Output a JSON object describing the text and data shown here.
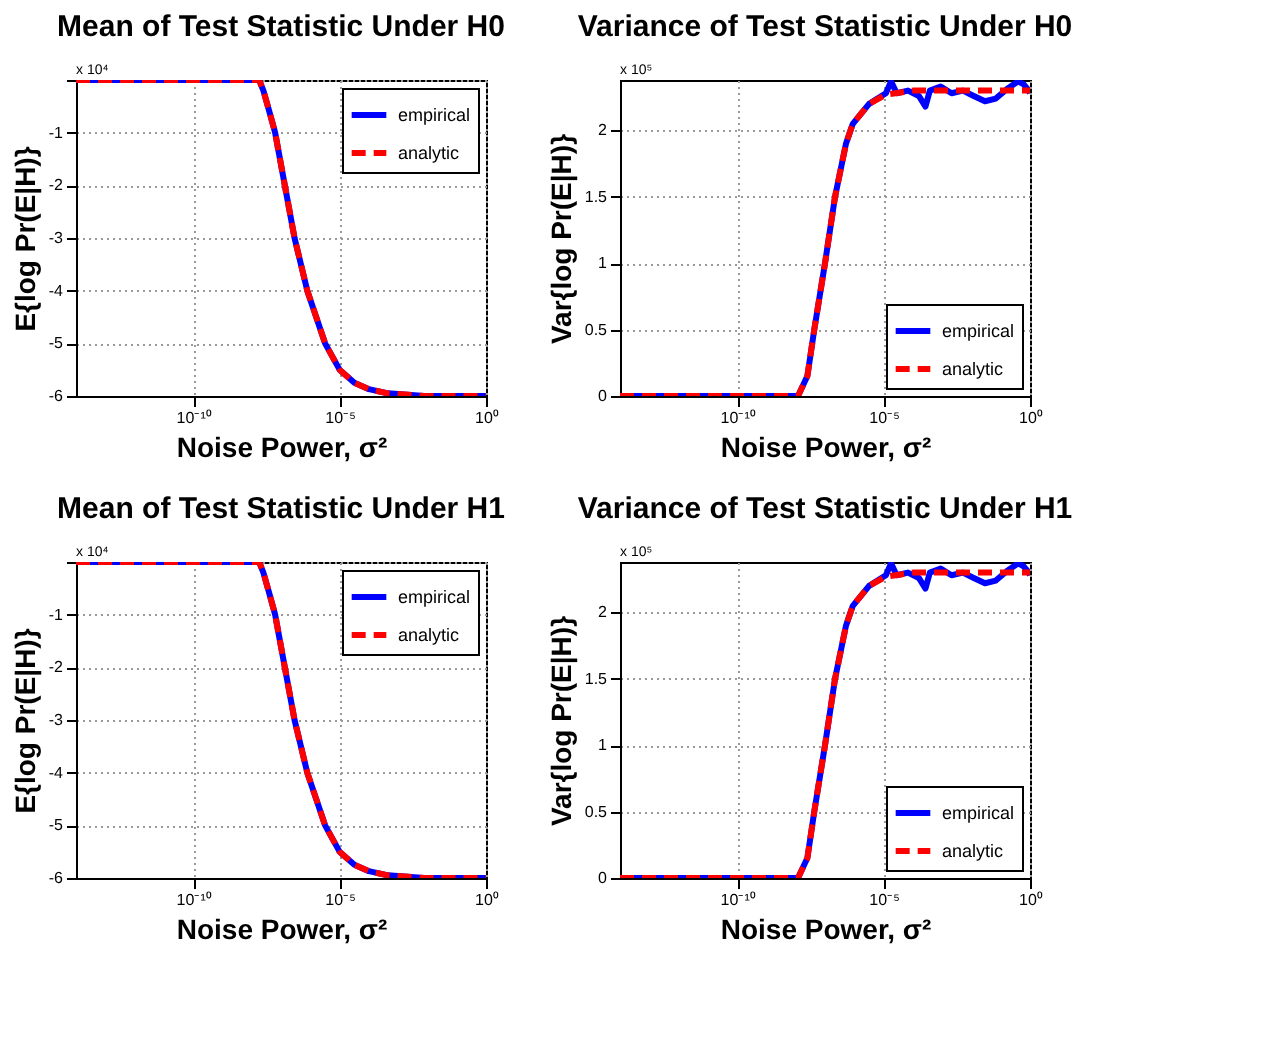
{
  "chart_data": [
    {
      "type": "line",
      "title": "Mean of Test Statistic Under H0",
      "xlabel": "Noise Power, σ²",
      "ylabel": "E{log Pr(E|H)}",
      "log": "x",
      "grid": true,
      "legend": "top right",
      "xlim": [
        1e-14,
        1
      ],
      "xticks": [
        {
          "value": 1e-10,
          "label": "10⁻¹⁰"
        },
        {
          "value": 1e-05,
          "label": "10⁻⁵"
        },
        {
          "value": 1,
          "label": "10⁰"
        }
      ],
      "ylim": [
        -6,
        0
      ],
      "yticks": [
        {
          "value": 0,
          "label": null
        },
        -1,
        -2,
        -3,
        -4,
        -5,
        -6
      ],
      "annotations": [
        "x 10⁴"
      ],
      "series": [
        {
          "name": "empirical",
          "color": "#0000ff",
          "line_style": "solid",
          "x": [
            1e-14,
            1e-08,
            1.8e-08,
            2.5e-08,
            4e-08,
            6.3e-08,
            1.35e-07,
            2.9e-07,
            7.9e-07,
            3.2e-06,
            1e-05,
            3.2e-05,
            0.0001,
            0.00045,
            0.0079,
            1
          ],
          "values": [
            0,
            0,
            0,
            -0.2,
            -0.6,
            -1,
            -2,
            -3,
            -4,
            -5,
            -5.5,
            -5.75,
            -5.87,
            -5.95,
            -6,
            -6
          ]
        },
        {
          "name": "analytic",
          "color": "#ff0000",
          "line_style": "dashed",
          "x": [
            1e-14,
            1e-08,
            1.8e-08,
            2.5e-08,
            4e-08,
            6.3e-08,
            1.35e-07,
            2.9e-07,
            7.9e-07,
            3.2e-06,
            1e-05,
            3.2e-05,
            0.0001,
            0.00045,
            0.0079,
            1
          ],
          "values": [
            0,
            0,
            0,
            -0.2,
            -0.6,
            -1,
            -2,
            -3,
            -4,
            -5,
            -5.5,
            -5.75,
            -5.87,
            -5.95,
            -6,
            -6
          ]
        }
      ]
    },
    {
      "type": "line",
      "title": "Variance of Test Statistic Under H0",
      "xlabel": "Noise Power, σ²",
      "ylabel": "Var{log Pr(E|H)}",
      "log": "x",
      "grid": true,
      "legend": "bottom right",
      "xlim": [
        1e-14,
        1
      ],
      "xticks": [
        {
          "value": 1e-10,
          "label": "10⁻¹⁰"
        },
        {
          "value": 1e-05,
          "label": "10⁻⁵"
        },
        {
          "value": 1,
          "label": "10⁰"
        }
      ],
      "ylim": [
        0,
        2.38
      ],
      "yticks": [
        0,
        0.5,
        1,
        1.5,
        2
      ],
      "annotations": [
        "x 10⁵"
      ],
      "series": [
        {
          "name": "empirical",
          "color": "#0000ff",
          "line_style": "solid",
          "x": [
            1e-14,
            1e-08,
            1.2e-08,
            2.5e-08,
            4.3e-08,
            1e-07,
            2.2e-07,
            5.2e-07,
            8.9e-07,
            3.2e-06,
            1.2e-05,
            1.8e-05,
            2.8e-05,
            6.8e-05,
            0.00016,
            0.00027,
            0.00038,
            0.00089,
            0.0021,
            0.0051,
            0.012,
            0.029,
            0.068,
            0.16,
            0.39,
            0.59,
            0.91,
            1
          ],
          "values": [
            0,
            0,
            0,
            0.15,
            0.5,
            1,
            1.5,
            1.9,
            2.05,
            2.2,
            2.28,
            2.37,
            2.28,
            2.3,
            2.26,
            2.18,
            2.3,
            2.33,
            2.28,
            2.3,
            2.26,
            2.22,
            2.24,
            2.31,
            2.37,
            2.35,
            2.3,
            2.28
          ]
        },
        {
          "name": "analytic",
          "color": "#ff0000",
          "line_style": "dashed",
          "x": [
            1e-14,
            1e-08,
            1.2e-08,
            2.5e-08,
            4.3e-08,
            1e-07,
            2.2e-07,
            5.2e-07,
            8.9e-07,
            3.2e-06,
            1.2e-05,
            0.0001,
            1
          ],
          "values": [
            0,
            0,
            0,
            0.15,
            0.5,
            1,
            1.5,
            1.9,
            2.05,
            2.2,
            2.27,
            2.3,
            2.3
          ]
        }
      ]
    },
    {
      "type": "line",
      "title": "Mean of Test Statistic Under H1",
      "xlabel": "Noise Power, σ²",
      "ylabel": "E{log Pr(E|H)}",
      "log": "x",
      "grid": true,
      "legend": "top right",
      "xlim": [
        1e-14,
        1
      ],
      "xticks": [
        {
          "value": 1e-10,
          "label": "10⁻¹⁰"
        },
        {
          "value": 1e-05,
          "label": "10⁻⁵"
        },
        {
          "value": 1,
          "label": "10⁰"
        }
      ],
      "ylim": [
        -6,
        0
      ],
      "yticks": [
        {
          "value": 0,
          "label": null
        },
        -1,
        -2,
        -3,
        -4,
        -5,
        -6
      ],
      "annotations": [
        "x 10⁴"
      ],
      "series": [
        {
          "name": "empirical",
          "color": "#0000ff",
          "line_style": "solid",
          "x": [
            1e-14,
            1e-08,
            1.8e-08,
            2.5e-08,
            4e-08,
            6.3e-08,
            1.35e-07,
            2.9e-07,
            7.9e-07,
            3.2e-06,
            1e-05,
            3.2e-05,
            0.0001,
            0.00045,
            0.0079,
            1
          ],
          "values": [
            0,
            0,
            0,
            -0.2,
            -0.6,
            -1,
            -2,
            -3,
            -4,
            -5,
            -5.5,
            -5.75,
            -5.87,
            -5.95,
            -6,
            -6
          ]
        },
        {
          "name": "analytic",
          "color": "#ff0000",
          "line_style": "dashed",
          "x": [
            1e-14,
            1e-08,
            1.8e-08,
            2.5e-08,
            4e-08,
            6.3e-08,
            1.35e-07,
            2.9e-07,
            7.9e-07,
            3.2e-06,
            1e-05,
            3.2e-05,
            0.0001,
            0.00045,
            0.0079,
            1
          ],
          "values": [
            0,
            0,
            0,
            -0.2,
            -0.6,
            -1,
            -2,
            -3,
            -4,
            -5,
            -5.5,
            -5.75,
            -5.87,
            -5.95,
            -6,
            -6
          ]
        }
      ]
    },
    {
      "type": "line",
      "title": "Variance of Test Statistic Under H1",
      "xlabel": "Noise Power, σ²",
      "ylabel": "Var{log Pr(E|H)}",
      "log": "x",
      "grid": true,
      "legend": "bottom right",
      "xlim": [
        1e-14,
        1
      ],
      "xticks": [
        {
          "value": 1e-10,
          "label": "10⁻¹⁰"
        },
        {
          "value": 1e-05,
          "label": "10⁻⁵"
        },
        {
          "value": 1,
          "label": "10⁰"
        }
      ],
      "ylim": [
        0,
        2.38
      ],
      "yticks": [
        0,
        0.5,
        1,
        1.5,
        2
      ],
      "annotations": [
        "x 10⁵"
      ],
      "series": [
        {
          "name": "empirical",
          "color": "#0000ff",
          "line_style": "solid",
          "x": [
            1e-14,
            1e-08,
            1.2e-08,
            2.5e-08,
            4.3e-08,
            1e-07,
            2.2e-07,
            5.2e-07,
            8.9e-07,
            3.2e-06,
            1.2e-05,
            1.8e-05,
            2.8e-05,
            6.8e-05,
            0.00016,
            0.00027,
            0.00038,
            0.00089,
            0.0021,
            0.0051,
            0.012,
            0.029,
            0.068,
            0.16,
            0.39,
            0.59,
            0.91,
            1
          ],
          "values": [
            0,
            0,
            0,
            0.15,
            0.5,
            1,
            1.5,
            1.9,
            2.05,
            2.2,
            2.28,
            2.37,
            2.28,
            2.3,
            2.26,
            2.18,
            2.3,
            2.33,
            2.28,
            2.3,
            2.26,
            2.22,
            2.24,
            2.31,
            2.37,
            2.35,
            2.3,
            2.28
          ]
        },
        {
          "name": "analytic",
          "color": "#ff0000",
          "line_style": "dashed",
          "x": [
            1e-14,
            1e-08,
            1.2e-08,
            2.5e-08,
            4.3e-08,
            1e-07,
            2.2e-07,
            5.2e-07,
            8.9e-07,
            3.2e-06,
            1.2e-05,
            0.0001,
            1
          ],
          "values": [
            0,
            0,
            0,
            0.15,
            0.5,
            1,
            1.5,
            1.9,
            2.05,
            2.2,
            2.27,
            2.3,
            2.3
          ]
        }
      ]
    }
  ]
}
